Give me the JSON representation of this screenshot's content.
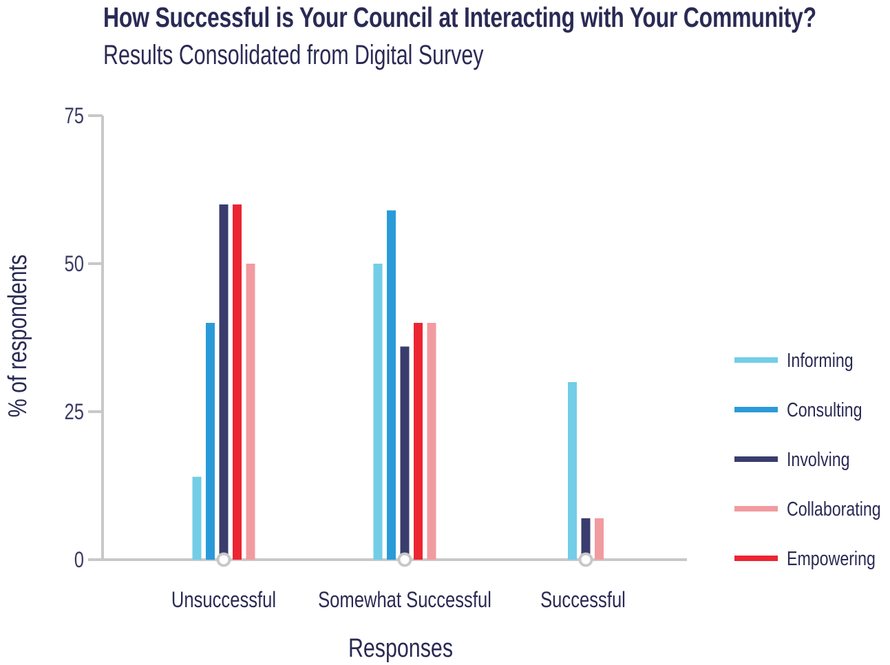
{
  "title": "How Successful is Your Council at Interacting with Your Community?",
  "subtitle": "Results Consolidated from Digital Survey",
  "chart_data": {
    "type": "bar",
    "title": "How Successful is Your Council at Interacting with Your Community?",
    "subtitle": "Results Consolidated from Digital Survey",
    "xlabel": "Responses",
    "ylabel": "% of respondents",
    "ylim": [
      0,
      75
    ],
    "yticks": [
      0,
      25,
      50,
      75
    ],
    "categories": [
      "Unsuccessful",
      "Somewhat Successful",
      "Successful"
    ],
    "grid": false,
    "legend_position": "right",
    "series": [
      {
        "name": "Informing",
        "color": "#73CDE6",
        "values": [
          14,
          50,
          30
        ]
      },
      {
        "name": "Consulting",
        "color": "#2A9BD8",
        "values": [
          40,
          59,
          0
        ]
      },
      {
        "name": "Involving",
        "color": "#3A3C6E",
        "values": [
          60,
          36,
          7
        ]
      },
      {
        "name": "Empowering",
        "color": "#EC2533",
        "values": [
          60,
          40,
          0
        ]
      },
      {
        "name": "Collaborating",
        "color": "#F19BA0",
        "values": [
          50,
          40,
          7
        ]
      }
    ],
    "legend_order": [
      "Informing",
      "Consulting",
      "Involving",
      "Collaborating",
      "Empowering"
    ]
  }
}
